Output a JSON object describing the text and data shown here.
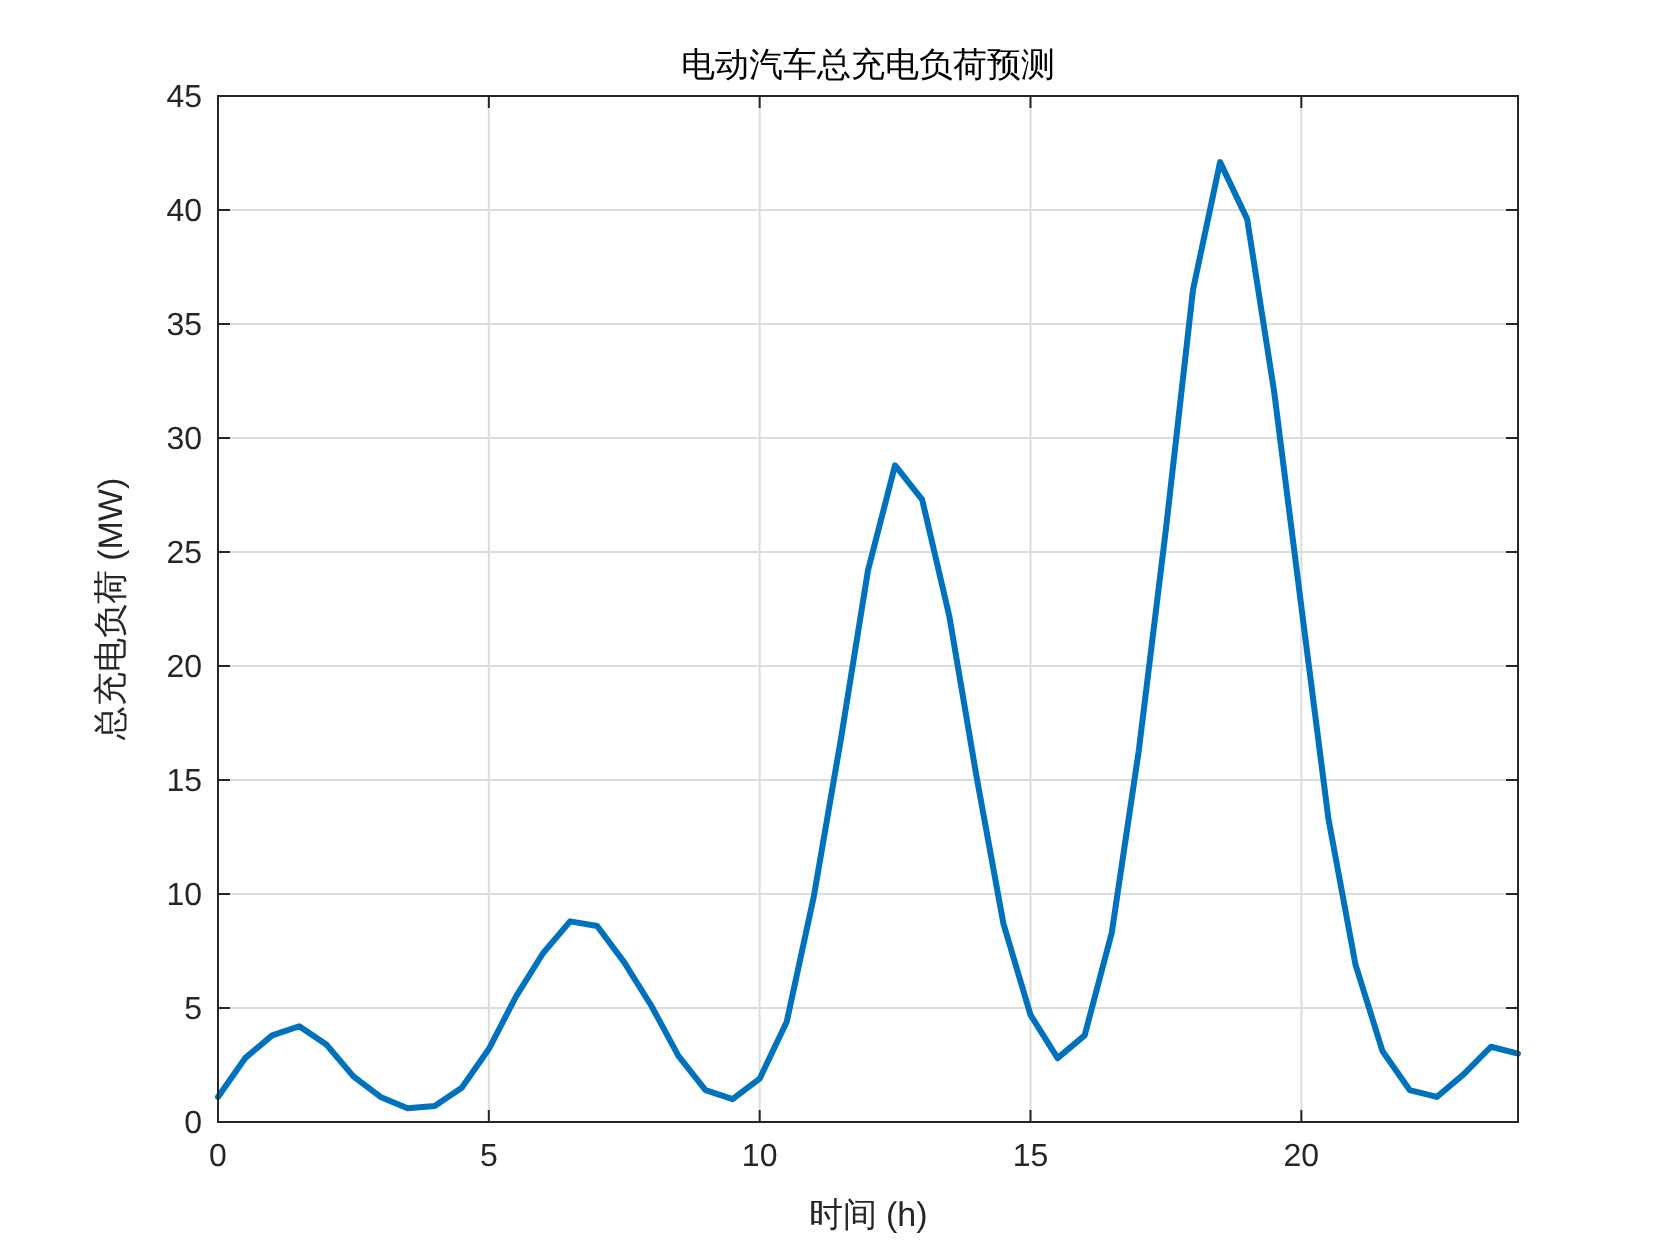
{
  "chart_data": {
    "type": "line",
    "title": "电动汽车总充电负荷预测",
    "xlabel": "时间 (h)",
    "ylabel": "总充电负荷 (MW)",
    "x": [
      0,
      0.5,
      1,
      1.5,
      2,
      2.5,
      3,
      3.5,
      4,
      4.5,
      5,
      5.5,
      6,
      6.5,
      7,
      7.5,
      8,
      8.5,
      9,
      9.5,
      10,
      10.5,
      11,
      11.5,
      12,
      12.5,
      13,
      13.5,
      14,
      14.5,
      15,
      15.5,
      16,
      16.5,
      17,
      17.5,
      18,
      18.5,
      19,
      19.5,
      20,
      20.5,
      21,
      21.5,
      22,
      22.5,
      23,
      23.5,
      24
    ],
    "series": [
      {
        "color": "#0072bd",
        "values": [
          1.1,
          2.8,
          3.8,
          4.2,
          3.4,
          2.0,
          1.1,
          0.6,
          0.7,
          1.5,
          3.2,
          5.5,
          7.4,
          8.8,
          8.6,
          7.0,
          5.1,
          2.9,
          1.4,
          1.0,
          1.9,
          4.4,
          9.9,
          16.8,
          24.2,
          28.8,
          27.3,
          22.2,
          15.2,
          8.7,
          4.7,
          2.8,
          3.8,
          8.3,
          16.3,
          26.0,
          36.5,
          42.1,
          39.6,
          32.0,
          22.6,
          13.3,
          6.9,
          3.1,
          1.4,
          1.1,
          2.1,
          3.3,
          3.0
        ]
      }
    ],
    "xlim": [
      0,
      24
    ],
    "xticks": [
      0,
      5,
      10,
      15,
      20
    ],
    "ylim": [
      0,
      45
    ],
    "yticks": [
      0,
      5,
      10,
      15,
      20,
      25,
      30,
      35,
      40,
      45
    ],
    "grid": true,
    "marker": "none",
    "line_style": "solid"
  }
}
